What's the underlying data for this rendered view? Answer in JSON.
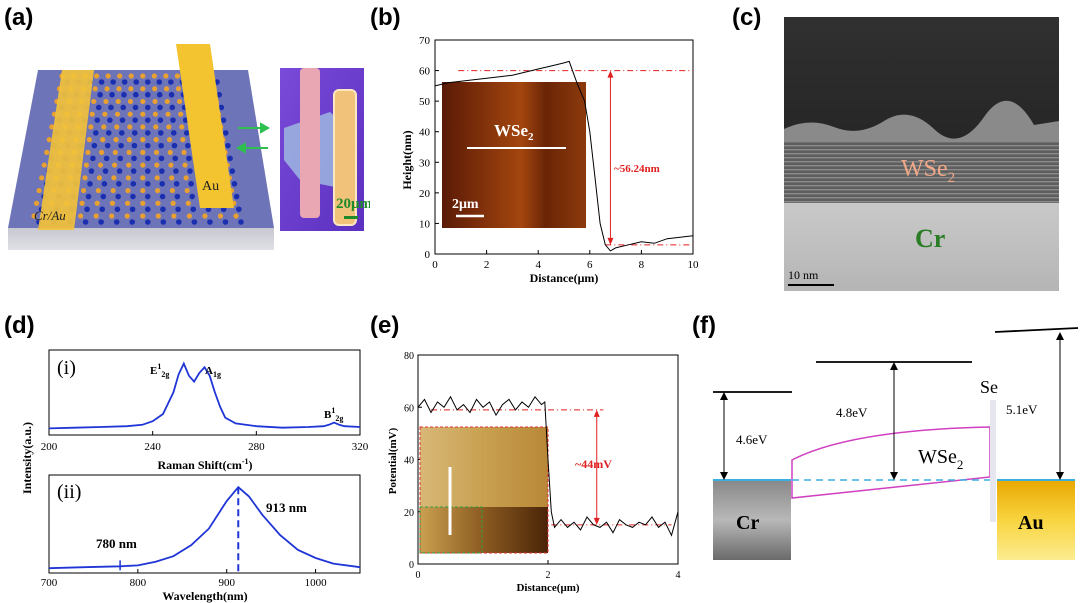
{
  "panel_labels": [
    "(a)",
    "(b)",
    "(c)",
    "(d)",
    "(e)",
    "(f)"
  ],
  "panel_a": {
    "electrode_left": "Cr/Au",
    "electrode_right": "Au",
    "scale_bar": "20μm"
  },
  "panel_b": {
    "inset_label": "WSe",
    "inset_sub": "2",
    "inset_scale": "2μm",
    "step_label": "~56.24nm"
  },
  "panel_c": {
    "wse2_label": "WSe",
    "wse2_sub": "2",
    "cr_label": "Cr",
    "scale_bar": "10 nm"
  },
  "panel_d": {
    "ylabel": "Intensity(a.u.)",
    "sub_i_label": "(i)",
    "sub_ii_label": "(ii)",
    "peak_e_main": "E",
    "peak_e_sup": "1",
    "peak_e_sub": "2g",
    "peak_a_main": "A",
    "peak_a_sub": "1g",
    "peak_b_main": "B",
    "peak_b_sup": "1",
    "peak_b_sub": "2g",
    "peak_913": "913 nm",
    "peak_780": "780 nm",
    "raman_xlabel_main": "Raman Shift(cm",
    "raman_xlabel_sup": "-1",
    "raman_xlabel_end": ")",
    "pl_xlabel": "Wavelength(nm)"
  },
  "panel_e": {
    "step_label": "~44mV"
  },
  "panel_f": {
    "cr_label": "Cr",
    "au_label": "Au",
    "wse2_label": "WSe",
    "wse2_sub": "2",
    "se_label": "Se",
    "wf_cr": "4.6eV",
    "wf_wse2": "4.8eV",
    "wf_au": "5.1eV"
  },
  "chart_data": [
    {
      "id": "afm-height-profile",
      "type": "line",
      "xlabel": "Distance(μm)",
      "ylabel": "Height(nm)",
      "xlim": [
        0,
        10
      ],
      "ylim": [
        0,
        70
      ],
      "xticks": [
        0,
        2,
        4,
        6,
        8,
        10
      ],
      "yticks": [
        0,
        10,
        20,
        30,
        40,
        50,
        60,
        70
      ],
      "x": [
        0,
        0.5,
        1,
        1.5,
        2,
        2.5,
        3,
        3.5,
        4,
        4.5,
        5,
        5.2,
        5.5,
        5.8,
        6.0,
        6.2,
        6.4,
        6.6,
        6.8,
        7,
        7.5,
        8,
        8.5,
        9,
        9.5,
        10
      ],
      "y": [
        55,
        56,
        56.5,
        57,
        57.5,
        58,
        58.5,
        59.5,
        60.5,
        61.5,
        62.5,
        63,
        56,
        50,
        40,
        25,
        10,
        3,
        1,
        2,
        3,
        4,
        3.5,
        5,
        5.5,
        6
      ],
      "reference_levels": [
        60,
        3
      ]
    },
    {
      "id": "raman-spectrum",
      "type": "line",
      "xlabel": "Raman Shift(cm-1)",
      "xlim": [
        200,
        320
      ],
      "xticks": [
        200,
        240,
        280,
        320
      ],
      "x": [
        200,
        210,
        220,
        230,
        236,
        240,
        244,
        248,
        250,
        252,
        254,
        256,
        258,
        260,
        262,
        264,
        266,
        268,
        272,
        280,
        290,
        300,
        306,
        308,
        310,
        312,
        314,
        320
      ],
      "y": [
        0.05,
        0.06,
        0.07,
        0.08,
        0.1,
        0.15,
        0.25,
        0.55,
        0.8,
        0.95,
        0.78,
        0.7,
        0.82,
        0.9,
        0.78,
        0.55,
        0.35,
        0.2,
        0.12,
        0.08,
        0.06,
        0.07,
        0.08,
        0.1,
        0.13,
        0.1,
        0.08,
        0.07
      ]
    },
    {
      "id": "pl-spectrum",
      "type": "line",
      "xlabel": "Wavelength(nm)",
      "xlim": [
        700,
        1050
      ],
      "xticks": [
        700,
        800,
        900,
        1000
      ],
      "x": [
        700,
        740,
        780,
        800,
        820,
        840,
        860,
        880,
        900,
        913,
        925,
        940,
        960,
        980,
        1000,
        1020,
        1050
      ],
      "y": [
        0.02,
        0.03,
        0.04,
        0.05,
        0.09,
        0.15,
        0.27,
        0.45,
        0.75,
        0.9,
        0.8,
        0.6,
        0.38,
        0.22,
        0.13,
        0.07,
        0.03
      ],
      "marked_peaks": [
        780,
        913
      ]
    },
    {
      "id": "kpfm-potential-profile",
      "type": "line",
      "xlabel": "Distance(μm)",
      "ylabel": "Potential(mV)",
      "xlim": [
        0,
        4
      ],
      "ylim": [
        0,
        80
      ],
      "xticks": [
        0,
        2,
        4
      ],
      "yticks": [
        0,
        20,
        40,
        60,
        80
      ],
      "x": [
        0,
        0.1,
        0.2,
        0.3,
        0.4,
        0.5,
        0.6,
        0.7,
        0.8,
        0.9,
        1.0,
        1.1,
        1.2,
        1.3,
        1.4,
        1.5,
        1.6,
        1.7,
        1.8,
        1.9,
        1.95,
        2.0,
        2.05,
        2.1,
        2.2,
        2.3,
        2.4,
        2.5,
        2.6,
        2.7,
        2.8,
        2.9,
        3.0,
        3.1,
        3.2,
        3.3,
        3.4,
        3.5,
        3.6,
        3.7,
        3.8,
        3.9,
        4.0
      ],
      "y": [
        60,
        63,
        58,
        62,
        60,
        64,
        59,
        61,
        58,
        63,
        60,
        62,
        57,
        61,
        63,
        59,
        62,
        60,
        64,
        61,
        62,
        40,
        20,
        14,
        17,
        14,
        16,
        13,
        18,
        15,
        14,
        16,
        12,
        17,
        15,
        14,
        16,
        15,
        18,
        14,
        16,
        11,
        20
      ],
      "reference_levels": [
        59,
        15
      ]
    }
  ]
}
